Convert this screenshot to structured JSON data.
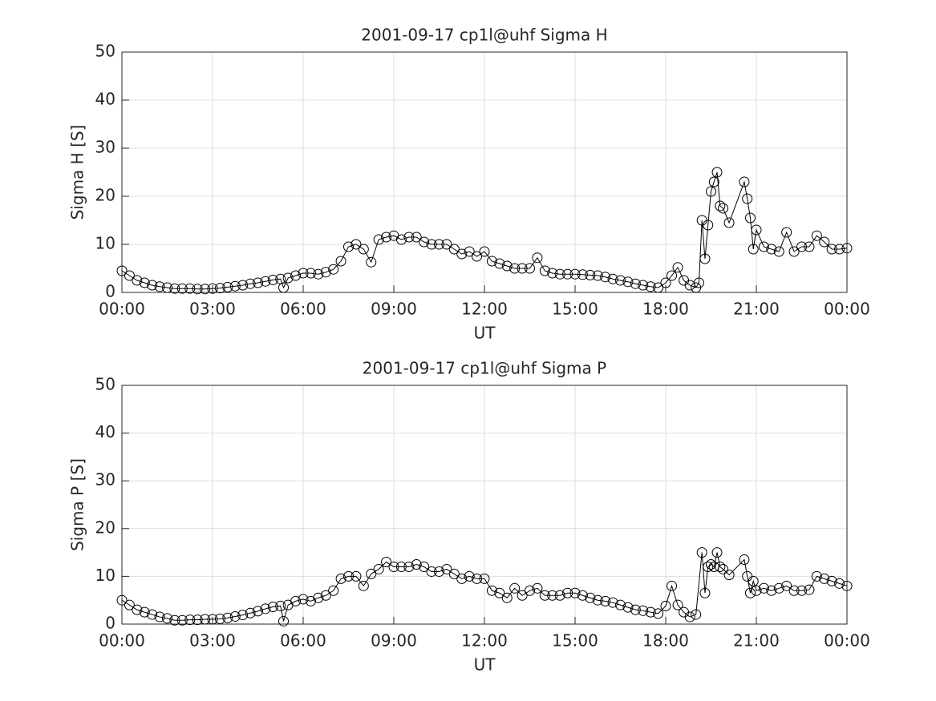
{
  "chart_data": [
    {
      "type": "line",
      "title": "2001-09-17  cp1l@uhf Sigma H",
      "xlabel": "UT",
      "ylabel": "Sigma H [S]",
      "marker": "circle",
      "grid": true,
      "xlim": [
        0,
        24
      ],
      "xticks": [
        {
          "value": 0,
          "label": "00:00"
        },
        {
          "value": 3,
          "label": "03:00"
        },
        {
          "value": 6,
          "label": "06:00"
        },
        {
          "value": 9,
          "label": "09:00"
        },
        {
          "value": 12,
          "label": "12:00"
        },
        {
          "value": 15,
          "label": "15:00"
        },
        {
          "value": 18,
          "label": "18:00"
        },
        {
          "value": 21,
          "label": "21:00"
        },
        {
          "value": 24,
          "label": "00:00"
        }
      ],
      "ylim": [
        0,
        50
      ],
      "yticks": [
        0,
        10,
        20,
        30,
        40,
        50
      ],
      "x": [
        0,
        0.25,
        0.5,
        0.75,
        1,
        1.25,
        1.5,
        1.75,
        2,
        2.25,
        2.5,
        2.75,
        3,
        3.25,
        3.5,
        3.75,
        4,
        4.25,
        4.5,
        4.75,
        5,
        5.25,
        5.35,
        5.5,
        5.75,
        6,
        6.25,
        6.5,
        6.75,
        7,
        7.25,
        7.5,
        7.75,
        8,
        8.25,
        8.5,
        8.75,
        9,
        9.25,
        9.5,
        9.75,
        10,
        10.25,
        10.5,
        10.75,
        11,
        11.25,
        11.5,
        11.75,
        12,
        12.25,
        12.5,
        12.75,
        13,
        13.25,
        13.5,
        13.75,
        14,
        14.25,
        14.5,
        14.75,
        15,
        15.25,
        15.5,
        15.75,
        16,
        16.25,
        16.5,
        16.75,
        17,
        17.25,
        17.5,
        17.75,
        18,
        18.2,
        18.4,
        18.6,
        18.8,
        19,
        19.1,
        19.2,
        19.3,
        19.4,
        19.5,
        19.6,
        19.7,
        19.8,
        19.9,
        20.1,
        20.6,
        20.7,
        20.8,
        20.9,
        21,
        21.25,
        21.5,
        21.75,
        22,
        22.25,
        22.5,
        22.75,
        23,
        23.25,
        23.5,
        23.75,
        24
      ],
      "series": [
        {
          "color": "#000000",
          "values": [
            4.5,
            3.5,
            2.5,
            2,
            1.5,
            1.2,
            1,
            0.8,
            0.8,
            0.8,
            0.7,
            0.7,
            0.8,
            0.9,
            1.1,
            1.3,
            1.5,
            1.8,
            2,
            2.3,
            2.6,
            2.8,
            1,
            3,
            3.5,
            4,
            4,
            3.8,
            4.2,
            4.8,
            6.5,
            9.5,
            10,
            9,
            6.3,
            11,
            11.5,
            11.8,
            11,
            11.5,
            11.5,
            10.5,
            10,
            10,
            10,
            9,
            8,
            8.5,
            7.5,
            8.5,
            6.5,
            6,
            5.5,
            5,
            5,
            5,
            7.2,
            4.5,
            4,
            3.8,
            3.8,
            3.8,
            3.7,
            3.6,
            3.5,
            3.2,
            2.8,
            2.5,
            2.2,
            1.8,
            1.5,
            1.2,
            1,
            2,
            3.5,
            5.2,
            2.5,
            1.5,
            1,
            2,
            15,
            7,
            14,
            21,
            23,
            25,
            18,
            17.5,
            14.5,
            23,
            19.5,
            15.5,
            9,
            13,
            9.5,
            9,
            8.5,
            12.5,
            8.5,
            9.5,
            9.5,
            11.8,
            10.5,
            9,
            9,
            9.2
          ]
        }
      ]
    },
    {
      "type": "line",
      "title": "2001-09-17  cp1l@uhf Sigma P",
      "xlabel": "UT",
      "ylabel": "Sigma P [S]",
      "marker": "circle",
      "grid": true,
      "xlim": [
        0,
        24
      ],
      "xticks": [
        {
          "value": 0,
          "label": "00:00"
        },
        {
          "value": 3,
          "label": "03:00"
        },
        {
          "value": 6,
          "label": "06:00"
        },
        {
          "value": 9,
          "label": "09:00"
        },
        {
          "value": 12,
          "label": "12:00"
        },
        {
          "value": 15,
          "label": "15:00"
        },
        {
          "value": 18,
          "label": "18:00"
        },
        {
          "value": 21,
          "label": "21:00"
        },
        {
          "value": 24,
          "label": "00:00"
        }
      ],
      "ylim": [
        0,
        50
      ],
      "yticks": [
        0,
        10,
        20,
        30,
        40,
        50
      ],
      "x": [
        0,
        0.25,
        0.5,
        0.75,
        1,
        1.25,
        1.5,
        1.75,
        2,
        2.25,
        2.5,
        2.75,
        3,
        3.25,
        3.5,
        3.75,
        4,
        4.25,
        4.5,
        4.75,
        5,
        5.25,
        5.35,
        5.5,
        5.75,
        6,
        6.25,
        6.5,
        6.75,
        7,
        7.25,
        7.5,
        7.75,
        8,
        8.25,
        8.5,
        8.75,
        9,
        9.25,
        9.5,
        9.75,
        10,
        10.25,
        10.5,
        10.75,
        11,
        11.25,
        11.5,
        11.75,
        12,
        12.25,
        12.5,
        12.75,
        13,
        13.25,
        13.5,
        13.75,
        14,
        14.25,
        14.5,
        14.75,
        15,
        15.25,
        15.5,
        15.75,
        16,
        16.25,
        16.5,
        16.75,
        17,
        17.25,
        17.5,
        17.75,
        18,
        18.2,
        18.4,
        18.6,
        18.8,
        19,
        19.2,
        19.3,
        19.4,
        19.5,
        19.6,
        19.7,
        19.8,
        19.9,
        20.1,
        20.6,
        20.7,
        20.8,
        20.9,
        21,
        21.25,
        21.5,
        21.75,
        22,
        22.25,
        22.5,
        22.75,
        23,
        23.25,
        23.5,
        23.75,
        24
      ],
      "series": [
        {
          "color": "#000000",
          "values": [
            5,
            4,
            3,
            2.5,
            2,
            1.5,
            1.2,
            0.8,
            0.8,
            0.9,
            0.9,
            1,
            1,
            1.1,
            1.3,
            1.6,
            1.9,
            2.3,
            2.7,
            3.2,
            3.6,
            3.8,
            0.6,
            4,
            4.8,
            5.2,
            4.8,
            5.5,
            6,
            7,
            9.5,
            10,
            10,
            8,
            10.5,
            11.5,
            13,
            12,
            12,
            12,
            12.5,
            12,
            11,
            11,
            11.5,
            10.5,
            9.5,
            10,
            9.5,
            9.5,
            7,
            6.5,
            5.5,
            7.5,
            6,
            7,
            7.5,
            6,
            6,
            6,
            6.5,
            6.5,
            6,
            5.5,
            5,
            4.8,
            4.5,
            4,
            3.5,
            3,
            2.8,
            2.5,
            2.2,
            3.8,
            8,
            4,
            2.5,
            1.5,
            2,
            15,
            6.5,
            12,
            12.5,
            12,
            15,
            12,
            11.5,
            10.3,
            13.5,
            10,
            6.5,
            9,
            7,
            7.5,
            7,
            7.5,
            8,
            7,
            7,
            7.2,
            10,
            9.5,
            9,
            8.5,
            8
          ]
        }
      ]
    }
  ]
}
